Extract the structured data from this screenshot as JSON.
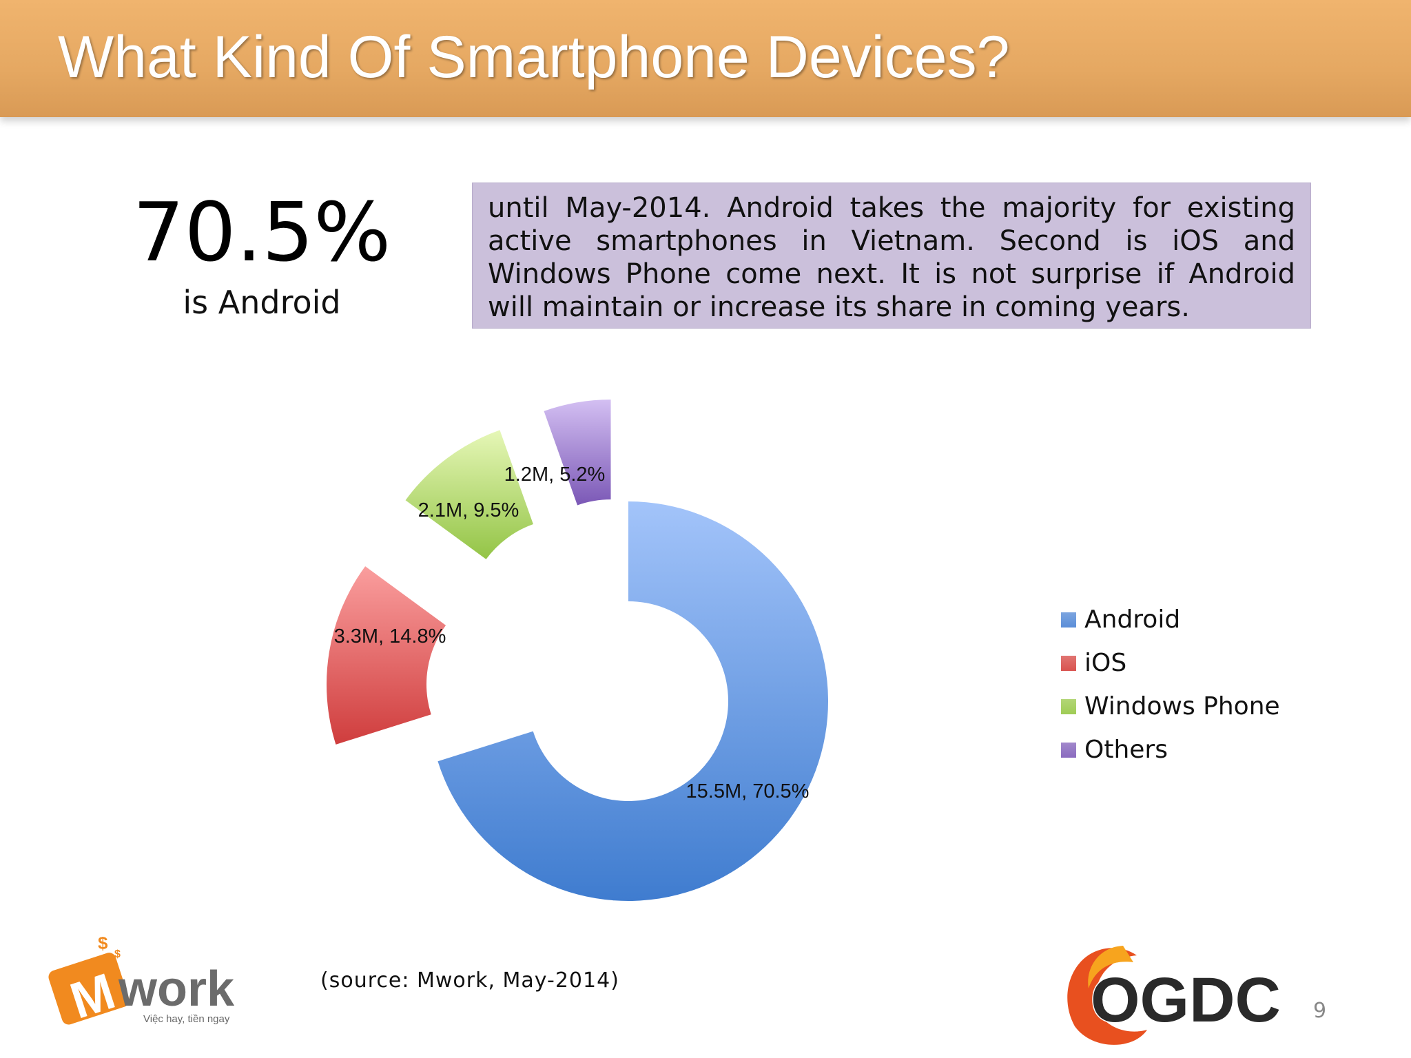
{
  "title": "What Kind Of Smartphone Devices?",
  "highlight": {
    "value": "70.5%",
    "label": "is Android"
  },
  "description": "until May-2014. Android takes the majority for existing active smartphones in Vietnam. Second is iOS and Windows Phone come next. It is not surprise if Android will maintain or increase its share in coming years.",
  "source": "(source: Mwork, May-2014)",
  "page_number": "9",
  "logos": {
    "left": {
      "name": "Mwork",
      "tagline": "Việc hay, tiền ngay"
    },
    "right": {
      "name": "OGDC"
    }
  },
  "colors": {
    "title_bar": "#e8ad67",
    "desc_box": "#cbc0db",
    "android": "#5b8ed8",
    "ios": "#d9534f",
    "windows_phone": "#9fcc55",
    "others": "#8a6bbf"
  },
  "chart_data": {
    "type": "pie",
    "style": "exploded doughnut",
    "categories": [
      "Android",
      "iOS",
      "Windows Phone",
      "Others"
    ],
    "values_millions": [
      15.5,
      3.3,
      2.1,
      1.2
    ],
    "percentages": [
      70.5,
      14.8,
      9.5,
      5.2
    ],
    "data_labels": [
      "15.5M, 70.5%",
      "3.3M, 14.8%",
      "2.1M, 9.5%",
      "1.2M, 5.2%"
    ],
    "legend_position": "right"
  }
}
